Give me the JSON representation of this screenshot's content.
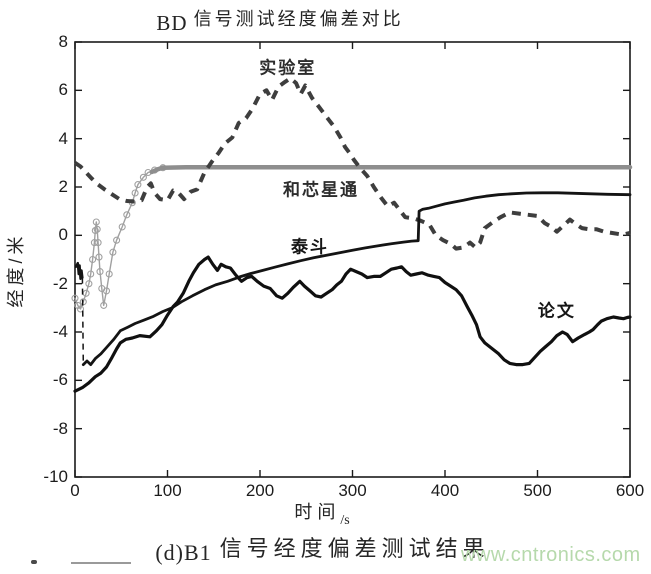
{
  "title": {
    "prefix": "BD",
    "main": "信号测试经度偏差对比"
  },
  "caption": {
    "prefix": "(d)B1",
    "main": "信号经度偏差测试结果"
  },
  "watermark": {
    "text": "www.cntronics.com",
    "color": "#b6d9ac"
  },
  "chart_data": {
    "type": "line",
    "title": "BD 信号测试经度偏差对比",
    "xlabel": "时间",
    "xlabel_unit": "/s",
    "ylabel": "经度/米",
    "xlim": [
      0,
      600
    ],
    "ylim": [
      -10,
      8
    ],
    "xticks": [
      0,
      100,
      200,
      300,
      400,
      500,
      600
    ],
    "yticks": [
      8,
      6,
      4,
      2,
      0,
      -2,
      -4,
      -6,
      -8,
      -10
    ],
    "grid": false,
    "legend": "none (inline curve labels)",
    "axis_color": "#1a1a1a",
    "annotations": [
      {
        "id": "lab",
        "text": "实验室",
        "x": 230,
        "y": 7.0,
        "color": "#2d2d2d"
      },
      {
        "id": "hexin",
        "text": "和芯星通",
        "x": 266,
        "y": 1.95,
        "color": "#2d2d2d"
      },
      {
        "id": "taidou",
        "text": "泰斗",
        "x": 254,
        "y": -0.38,
        "color": "#161616"
      },
      {
        "id": "paper",
        "text": "论文",
        "x": 521,
        "y": -3.05,
        "color": "#161616"
      }
    ],
    "series": [
      {
        "id": "hexin-start",
        "name": "和芯星通(初始段)",
        "color": "#a0a0a0",
        "width": 1.4,
        "markers": true,
        "points": [
          [
            0,
            -2.6
          ],
          [
            3,
            -2.9
          ],
          [
            6,
            -3.05
          ],
          [
            9,
            -2.75
          ],
          [
            12,
            -2.4
          ],
          [
            15,
            -2.0
          ],
          [
            17,
            -1.6
          ],
          [
            19,
            -1.0
          ],
          [
            21,
            -0.3
          ],
          [
            22,
            0.2
          ],
          [
            23,
            0.55
          ],
          [
            24,
            0.25
          ],
          [
            25,
            -0.3
          ],
          [
            26,
            -0.9
          ],
          [
            27,
            -1.5
          ],
          [
            29,
            -2.2
          ],
          [
            31,
            -2.9
          ],
          [
            34,
            -2.3
          ],
          [
            37,
            -1.6
          ],
          [
            41,
            -0.7
          ],
          [
            45,
            -0.2
          ],
          [
            51,
            0.35
          ],
          [
            56,
            0.85
          ],
          [
            62,
            1.35
          ],
          [
            65,
            1.75
          ],
          [
            68,
            2.1
          ],
          [
            74,
            2.4
          ],
          [
            79,
            2.6
          ],
          [
            86,
            2.7
          ],
          [
            95,
            2.8
          ]
        ]
      },
      {
        "id": "hexin",
        "name": "和芯星通",
        "color": "#8e8e8e",
        "width": 4.5,
        "points": [
          [
            83,
            2.62
          ],
          [
            90,
            2.74
          ],
          [
            95,
            2.8
          ],
          [
            120,
            2.82
          ],
          [
            300,
            2.82
          ],
          [
            600,
            2.82
          ]
        ]
      },
      {
        "id": "lab",
        "name": "实验室",
        "color": "#3e3e3e",
        "width": 4,
        "dash": "9 7",
        "points": [
          [
            0,
            3.0
          ],
          [
            6,
            2.85
          ],
          [
            12,
            2.6
          ],
          [
            18,
            2.35
          ],
          [
            25,
            2.1
          ],
          [
            32,
            1.9
          ],
          [
            40,
            1.7
          ],
          [
            48,
            1.5
          ],
          [
            56,
            1.42
          ],
          [
            64,
            1.4
          ],
          [
            72,
            1.45
          ],
          [
            78,
            2.0
          ],
          [
            82,
            2.15
          ],
          [
            86,
            1.75
          ],
          [
            92,
            1.5
          ],
          [
            100,
            1.45
          ],
          [
            106,
            1.85
          ],
          [
            112,
            1.75
          ],
          [
            118,
            1.5
          ],
          [
            125,
            1.8
          ],
          [
            132,
            1.9
          ],
          [
            140,
            2.6
          ],
          [
            148,
            3.05
          ],
          [
            155,
            3.4
          ],
          [
            162,
            3.8
          ],
          [
            170,
            4.05
          ],
          [
            177,
            4.65
          ],
          [
            185,
            4.85
          ],
          [
            192,
            5.25
          ],
          [
            200,
            5.85
          ],
          [
            207,
            6.0
          ],
          [
            213,
            5.6
          ],
          [
            220,
            6.15
          ],
          [
            227,
            6.35
          ],
          [
            233,
            6.5
          ],
          [
            239,
            6.3
          ],
          [
            244,
            5.85
          ],
          [
            249,
            6.2
          ],
          [
            256,
            5.7
          ],
          [
            263,
            5.35
          ],
          [
            268,
            5.1
          ],
          [
            274,
            4.8
          ],
          [
            280,
            4.5
          ],
          [
            287,
            4.05
          ],
          [
            292,
            3.65
          ],
          [
            297,
            3.4
          ],
          [
            302,
            3.1
          ],
          [
            308,
            2.8
          ],
          [
            316,
            2.45
          ],
          [
            323,
            2.0
          ],
          [
            331,
            1.55
          ],
          [
            338,
            1.2
          ],
          [
            345,
            1.35
          ],
          [
            352,
            1.0
          ],
          [
            357,
            0.75
          ],
          [
            366,
            0.7
          ],
          [
            374,
            0.6
          ],
          [
            383,
            0.45
          ],
          [
            390,
            0.0
          ],
          [
            398,
            -0.2
          ],
          [
            406,
            -0.35
          ],
          [
            412,
            -0.55
          ],
          [
            420,
            -0.5
          ],
          [
            427,
            -0.3
          ],
          [
            433,
            -0.5
          ],
          [
            438,
            -0.3
          ],
          [
            443,
            0.3
          ],
          [
            452,
            0.55
          ],
          [
            460,
            0.75
          ],
          [
            470,
            0.95
          ],
          [
            480,
            0.9
          ],
          [
            490,
            0.85
          ],
          [
            500,
            0.8
          ],
          [
            508,
            0.5
          ],
          [
            515,
            0.35
          ],
          [
            521,
            0.15
          ],
          [
            528,
            0.4
          ],
          [
            535,
            0.65
          ],
          [
            542,
            0.45
          ],
          [
            548,
            0.3
          ],
          [
            556,
            0.25
          ],
          [
            564,
            0.25
          ],
          [
            572,
            0.15
          ],
          [
            580,
            0.1
          ],
          [
            588,
            0.05
          ],
          [
            595,
            0.05
          ],
          [
            600,
            0.1
          ]
        ]
      },
      {
        "id": "taidou-hook",
        "name": "泰斗(起始)",
        "color": "#141414",
        "width": 2.4,
        "points": [
          [
            1,
            -1.3
          ],
          [
            3,
            -1.15
          ],
          [
            4,
            -1.6
          ],
          [
            5,
            -1.25
          ],
          [
            6,
            -1.8
          ],
          [
            7,
            -1.45
          ],
          [
            8,
            -1.75
          ]
        ]
      },
      {
        "id": "taidou-drop",
        "name": "泰斗(跳变)",
        "color": "#141414",
        "width": 1.5,
        "dash": "6 5",
        "points": [
          [
            8,
            -1.75
          ],
          [
            9,
            -5.35
          ]
        ]
      },
      {
        "id": "taidou",
        "name": "泰斗",
        "color": "#141414",
        "width": 2.8,
        "points": [
          [
            9,
            -5.35
          ],
          [
            13,
            -5.2
          ],
          [
            17,
            -5.35
          ],
          [
            22,
            -5.1
          ],
          [
            28,
            -4.9
          ],
          [
            35,
            -4.6
          ],
          [
            42,
            -4.3
          ],
          [
            49,
            -3.95
          ],
          [
            57,
            -3.8
          ],
          [
            65,
            -3.65
          ],
          [
            75,
            -3.5
          ],
          [
            85,
            -3.35
          ],
          [
            95,
            -3.15
          ],
          [
            105,
            -3.0
          ],
          [
            115,
            -2.75
          ],
          [
            127,
            -2.5
          ],
          [
            140,
            -2.25
          ],
          [
            152,
            -2.05
          ],
          [
            165,
            -1.9
          ],
          [
            178,
            -1.72
          ],
          [
            190,
            -1.58
          ],
          [
            203,
            -1.45
          ],
          [
            216,
            -1.32
          ],
          [
            230,
            -1.18
          ],
          [
            244,
            -1.05
          ],
          [
            258,
            -0.93
          ],
          [
            272,
            -0.82
          ],
          [
            286,
            -0.72
          ],
          [
            300,
            -0.62
          ],
          [
            314,
            -0.52
          ],
          [
            328,
            -0.43
          ],
          [
            342,
            -0.35
          ],
          [
            355,
            -0.28
          ],
          [
            364,
            -0.24
          ],
          [
            371,
            -0.22
          ],
          [
            372,
            1.0
          ],
          [
            376,
            1.08
          ],
          [
            382,
            1.12
          ],
          [
            390,
            1.2
          ],
          [
            400,
            1.3
          ],
          [
            410,
            1.38
          ],
          [
            420,
            1.45
          ],
          [
            432,
            1.55
          ],
          [
            444,
            1.62
          ],
          [
            458,
            1.68
          ],
          [
            472,
            1.72
          ],
          [
            488,
            1.75
          ],
          [
            505,
            1.76
          ],
          [
            522,
            1.76
          ],
          [
            540,
            1.74
          ],
          [
            558,
            1.72
          ],
          [
            576,
            1.7
          ],
          [
            600,
            1.68
          ]
        ]
      },
      {
        "id": "paper",
        "name": "论文",
        "color": "#101010",
        "width": 3.2,
        "points": [
          [
            0,
            -6.45
          ],
          [
            8,
            -6.3
          ],
          [
            15,
            -6.1
          ],
          [
            22,
            -5.85
          ],
          [
            28,
            -5.7
          ],
          [
            34,
            -5.45
          ],
          [
            40,
            -5.05
          ],
          [
            45,
            -4.7
          ],
          [
            49,
            -4.45
          ],
          [
            55,
            -4.3
          ],
          [
            62,
            -4.25
          ],
          [
            70,
            -4.15
          ],
          [
            81,
            -4.2
          ],
          [
            88,
            -3.95
          ],
          [
            94,
            -3.7
          ],
          [
            100,
            -3.3
          ],
          [
            106,
            -2.95
          ],
          [
            111,
            -2.75
          ],
          [
            117,
            -2.4
          ],
          [
            123,
            -1.9
          ],
          [
            128,
            -1.55
          ],
          [
            134,
            -1.2
          ],
          [
            140,
            -1.0
          ],
          [
            144,
            -0.9
          ],
          [
            149,
            -1.2
          ],
          [
            154,
            -1.45
          ],
          [
            158,
            -1.2
          ],
          [
            163,
            -1.3
          ],
          [
            168,
            -1.35
          ],
          [
            174,
            -1.65
          ],
          [
            180,
            -1.9
          ],
          [
            186,
            -1.75
          ],
          [
            191,
            -1.7
          ],
          [
            197,
            -1.9
          ],
          [
            204,
            -2.1
          ],
          [
            211,
            -2.2
          ],
          [
            218,
            -2.5
          ],
          [
            224,
            -2.6
          ],
          [
            230,
            -2.4
          ],
          [
            236,
            -2.15
          ],
          [
            243,
            -1.9
          ],
          [
            248,
            -2.1
          ],
          [
            254,
            -2.3
          ],
          [
            260,
            -2.5
          ],
          [
            266,
            -2.55
          ],
          [
            272,
            -2.4
          ],
          [
            278,
            -2.25
          ],
          [
            283,
            -2.05
          ],
          [
            288,
            -1.9
          ],
          [
            293,
            -1.6
          ],
          [
            298,
            -1.4
          ],
          [
            304,
            -1.5
          ],
          [
            310,
            -1.6
          ],
          [
            316,
            -1.75
          ],
          [
            323,
            -1.7
          ],
          [
            330,
            -1.7
          ],
          [
            336,
            -1.55
          ],
          [
            342,
            -1.4
          ],
          [
            348,
            -1.35
          ],
          [
            353,
            -1.3
          ],
          [
            358,
            -1.5
          ],
          [
            363,
            -1.65
          ],
          [
            369,
            -1.6
          ],
          [
            375,
            -1.55
          ],
          [
            382,
            -1.65
          ],
          [
            388,
            -1.7
          ],
          [
            394,
            -1.75
          ],
          [
            400,
            -1.95
          ],
          [
            406,
            -2.1
          ],
          [
            412,
            -2.25
          ],
          [
            418,
            -2.5
          ],
          [
            424,
            -2.95
          ],
          [
            429,
            -3.3
          ],
          [
            434,
            -3.7
          ],
          [
            438,
            -4.2
          ],
          [
            443,
            -4.45
          ],
          [
            448,
            -4.6
          ],
          [
            453,
            -4.75
          ],
          [
            458,
            -4.9
          ],
          [
            464,
            -5.15
          ],
          [
            470,
            -5.3
          ],
          [
            477,
            -5.35
          ],
          [
            484,
            -5.35
          ],
          [
            491,
            -5.3
          ],
          [
            497,
            -5.05
          ],
          [
            503,
            -4.8
          ],
          [
            509,
            -4.6
          ],
          [
            515,
            -4.4
          ],
          [
            521,
            -4.15
          ],
          [
            527,
            -4.0
          ],
          [
            532,
            -4.1
          ],
          [
            538,
            -4.4
          ],
          [
            544,
            -4.25
          ],
          [
            551,
            -4.1
          ],
          [
            556,
            -4.0
          ],
          [
            560,
            -3.9
          ],
          [
            565,
            -3.7
          ],
          [
            569,
            -3.55
          ],
          [
            575,
            -3.45
          ],
          [
            582,
            -3.38
          ],
          [
            588,
            -3.42
          ],
          [
            593,
            -3.45
          ],
          [
            597,
            -3.4
          ],
          [
            600,
            -3.38
          ]
        ]
      }
    ]
  }
}
